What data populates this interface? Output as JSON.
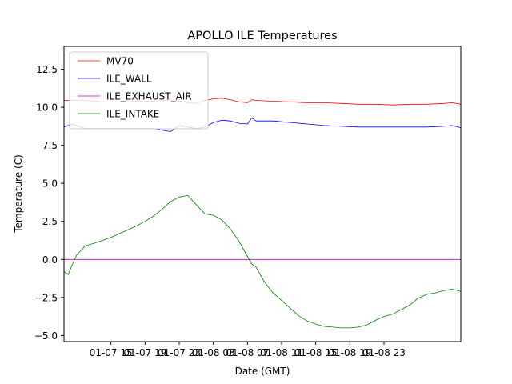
{
  "chart_data": {
    "type": "line",
    "title": "APOLLO ILE Temperatures",
    "xlabel": "Date (GMT)",
    "ylabel": "Temperature (C)",
    "xlim": [
      9.5,
      56
    ],
    "ylim": [
      -5.4,
      14
    ],
    "grid": false,
    "legend_position": "top-left",
    "x_unit": "hours since 01-07 00:00 GMT",
    "x_ticks": [
      {
        "value": 15,
        "label": "01-07 15"
      },
      {
        "value": 19,
        "label": "01-07 19"
      },
      {
        "value": 23,
        "label": "01-07 23"
      },
      {
        "value": 27,
        "label": "01-08 03"
      },
      {
        "value": 31,
        "label": "01-08 07"
      },
      {
        "value": 35,
        "label": "01-08 11"
      },
      {
        "value": 39,
        "label": "01-08 15"
      },
      {
        "value": 43,
        "label": "01-08 19"
      },
      {
        "value": 47,
        "label": "01-08 23"
      }
    ],
    "y_ticks": [
      {
        "value": -5.0,
        "label": "−5.0"
      },
      {
        "value": -2.5,
        "label": "−2.5"
      },
      {
        "value": 0.0,
        "label": "0.0"
      },
      {
        "value": 2.5,
        "label": "2.5"
      },
      {
        "value": 5.0,
        "label": "5.0"
      },
      {
        "value": 7.5,
        "label": "7.5"
      },
      {
        "value": 10.0,
        "label": "10.0"
      },
      {
        "value": 12.5,
        "label": "12.5"
      }
    ],
    "series": [
      {
        "name": "MV70",
        "color": "#ff0000",
        "x": [
          9.5,
          12,
          14,
          16,
          18,
          20,
          22,
          24,
          25,
          26,
          27,
          28,
          29,
          30,
          31,
          31.5,
          32,
          34,
          36,
          38,
          40,
          42,
          44,
          46,
          48,
          50,
          52,
          54,
          55,
          56
        ],
        "y": [
          10.45,
          10.45,
          10.35,
          10.35,
          10.4,
          10.4,
          10.5,
          10.3,
          10.25,
          10.45,
          10.55,
          10.6,
          10.5,
          10.35,
          10.3,
          10.5,
          10.45,
          10.4,
          10.35,
          10.3,
          10.3,
          10.25,
          10.2,
          10.2,
          10.15,
          10.2,
          10.2,
          10.25,
          10.3,
          10.2
        ]
      },
      {
        "name": "ILE_WALL",
        "color": "#0000ff",
        "x": [
          9.5,
          10.5,
          12,
          14,
          16,
          18,
          20,
          22,
          23,
          24,
          25,
          26,
          27,
          28,
          29,
          30,
          31,
          31.5,
          32,
          34,
          36,
          38,
          40,
          42,
          44,
          46,
          48,
          50,
          52,
          54,
          55,
          56
        ],
        "y": [
          8.7,
          8.9,
          8.6,
          8.6,
          8.6,
          8.6,
          8.6,
          8.4,
          8.8,
          8.7,
          8.6,
          8.7,
          9.0,
          9.15,
          9.1,
          8.95,
          8.9,
          9.3,
          9.1,
          9.1,
          9.0,
          8.9,
          8.8,
          8.75,
          8.7,
          8.7,
          8.7,
          8.7,
          8.7,
          8.75,
          8.8,
          8.65
        ]
      },
      {
        "name": "ILE_EXHAUST_AIR",
        "color": "#bf00bf",
        "x": [
          9.5,
          56
        ],
        "y": [
          0.0,
          0.0
        ]
      },
      {
        "name": "ILE_INTAKE",
        "color": "#008000",
        "x": [
          9.5,
          10,
          10.5,
          11,
          11.5,
          12,
          13,
          14,
          15,
          16,
          17,
          18,
          19,
          20,
          21,
          22,
          23,
          24,
          25,
          26,
          27,
          28,
          29,
          30,
          31,
          31.5,
          32,
          33,
          34,
          35,
          36,
          37,
          38,
          39,
          40,
          41,
          42,
          43,
          44,
          45,
          46,
          47,
          48,
          49,
          50,
          51,
          52,
          53,
          54,
          55,
          56
        ],
        "y": [
          -0.8,
          -1.0,
          -0.3,
          0.3,
          0.6,
          0.9,
          1.05,
          1.25,
          1.45,
          1.7,
          1.95,
          2.2,
          2.5,
          2.85,
          3.3,
          3.8,
          4.1,
          4.2,
          3.6,
          3.0,
          2.9,
          2.6,
          2.0,
          1.2,
          0.2,
          -0.3,
          -0.5,
          -1.5,
          -2.2,
          -2.7,
          -3.2,
          -3.7,
          -4.05,
          -4.25,
          -4.4,
          -4.45,
          -4.5,
          -4.5,
          -4.45,
          -4.3,
          -4.0,
          -3.75,
          -3.6,
          -3.3,
          -3.0,
          -2.55,
          -2.3,
          -2.2,
          -2.05,
          -1.95,
          -2.1
        ]
      }
    ]
  }
}
